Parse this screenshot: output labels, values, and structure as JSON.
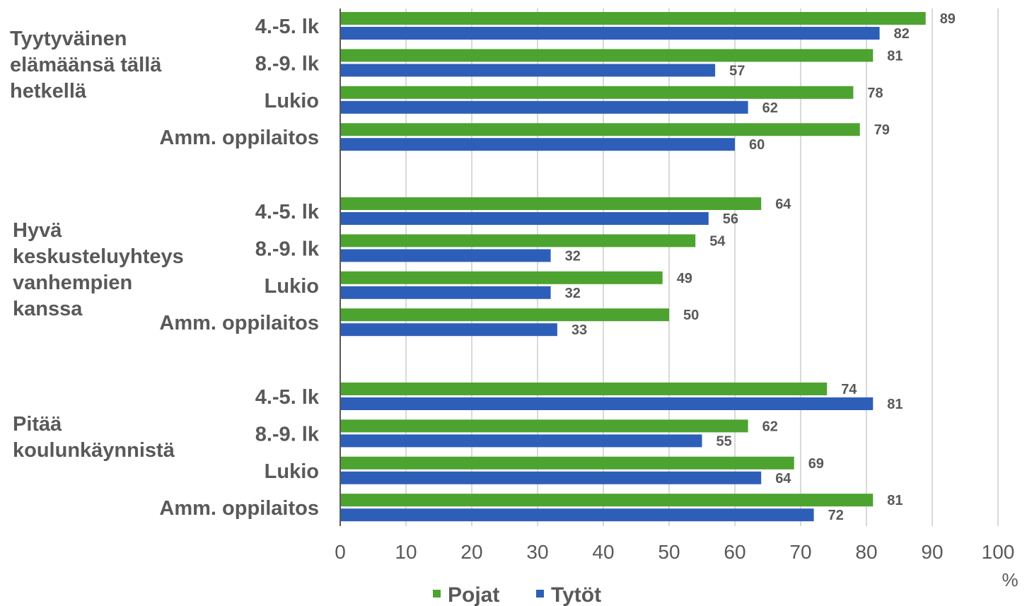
{
  "chart_data": {
    "type": "bar",
    "orientation": "horizontal",
    "unit_label": "%",
    "xlim": [
      0,
      100
    ],
    "x_ticks": [
      0,
      10,
      20,
      30,
      40,
      50,
      60,
      70,
      80,
      90,
      100
    ],
    "grid": true,
    "legend_position": "bottom",
    "series": [
      {
        "name": "Pojat",
        "color": "#4da32f"
      },
      {
        "name": "Tytöt",
        "color": "#2e5fb8"
      }
    ],
    "groups": [
      {
        "label_lines": [
          "Tyytyväinen",
          "elämäänsä tällä",
          "hetkellä"
        ],
        "categories": [
          {
            "label": "4.-5. lk",
            "values": [
              89,
              82
            ]
          },
          {
            "label": "8.-9. lk",
            "values": [
              81,
              57
            ]
          },
          {
            "label": "Lukio",
            "values": [
              78,
              62
            ]
          },
          {
            "label": "Amm. oppilaitos",
            "values": [
              79,
              60
            ]
          }
        ]
      },
      {
        "label_lines": [
          "Hyvä",
          "keskusteluyhteys",
          "vanhempien",
          "kanssa"
        ],
        "categories": [
          {
            "label": "4.-5. lk",
            "values": [
              64,
              56
            ]
          },
          {
            "label": "8.-9. lk",
            "values": [
              54,
              32
            ]
          },
          {
            "label": "Lukio",
            "values": [
              49,
              32
            ]
          },
          {
            "label": "Amm. oppilaitos",
            "values": [
              50,
              33
            ]
          }
        ]
      },
      {
        "label_lines": [
          "Pitää",
          "koulunkäynnistä"
        ],
        "categories": [
          {
            "label": "4.-5. lk",
            "values": [
              74,
              81
            ]
          },
          {
            "label": "8.-9. lk",
            "values": [
              62,
              55
            ]
          },
          {
            "label": "Lukio",
            "values": [
              69,
              64
            ]
          },
          {
            "label": "Amm. oppilaitos",
            "values": [
              81,
              72
            ]
          }
        ]
      }
    ]
  }
}
